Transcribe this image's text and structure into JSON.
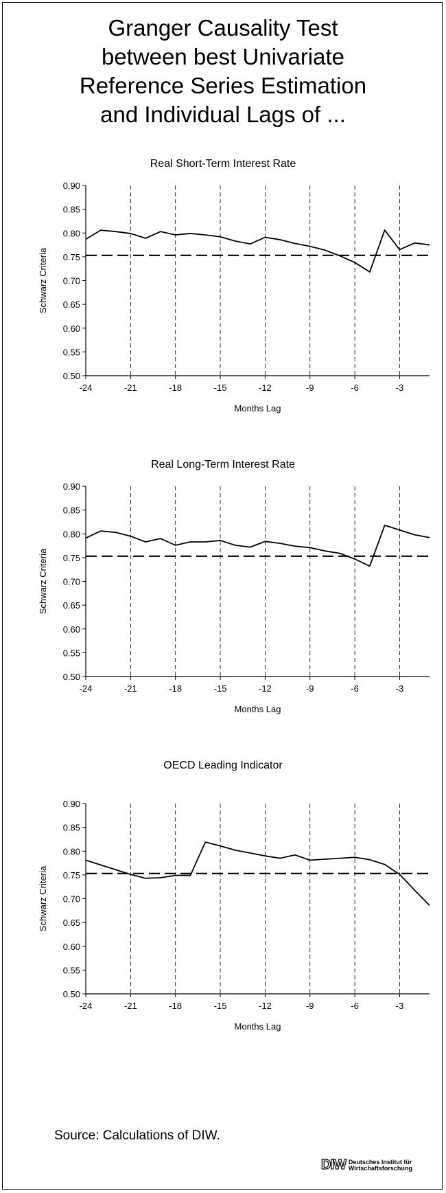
{
  "title_lines": [
    "Granger Causality Test",
    "between best Univariate",
    "Reference Series Estimation",
    "and Individual Lags of ..."
  ],
  "source": "Source: Calculations of DIW.",
  "logo": {
    "mark": "DIW",
    "line1": "Deutsches Institut für",
    "line2": "Wirtschaftsforschung"
  },
  "chart_data": [
    {
      "type": "line",
      "title": "Real Short-Term Interest Rate",
      "xlabel": "Months Lag",
      "ylabel": "Schwarz Criteria",
      "xlim": [
        -24,
        -1
      ],
      "ylim": [
        0.5,
        0.9
      ],
      "x_ticks": [
        -24,
        -21,
        -18,
        -15,
        -12,
        -9,
        -6,
        -3
      ],
      "y_ticks": [
        "0.50",
        "0.55",
        "0.60",
        "0.65",
        "0.70",
        "0.75",
        "0.80",
        "0.85",
        "0.90"
      ],
      "vertical_gridlines_at": [
        -21,
        -18,
        -15,
        -12,
        -9,
        -6,
        -3
      ],
      "reference_line": 0.753,
      "x": [
        -24,
        -23,
        -22,
        -21,
        -20,
        -19,
        -18,
        -17,
        -16,
        -15,
        -14,
        -13,
        -12,
        -11,
        -10,
        -9,
        -8,
        -7,
        -6,
        -5,
        -4,
        -3,
        -2,
        -1
      ],
      "values": [
        0.787,
        0.806,
        0.803,
        0.799,
        0.789,
        0.803,
        0.796,
        0.799,
        0.796,
        0.792,
        0.783,
        0.777,
        0.791,
        0.786,
        0.778,
        0.772,
        0.764,
        0.752,
        0.738,
        0.718,
        0.806,
        0.765,
        0.779,
        0.775
      ]
    },
    {
      "type": "line",
      "title": "Real Long-Term Interest Rate",
      "xlabel": "Months Lag",
      "ylabel": "Schwarz Criteria",
      "xlim": [
        -24,
        -1
      ],
      "ylim": [
        0.5,
        0.9
      ],
      "x_ticks": [
        -24,
        -21,
        -18,
        -15,
        -12,
        -9,
        -6,
        -3
      ],
      "y_ticks": [
        "0.50",
        "0.55",
        "0.60",
        "0.65",
        "0.70",
        "0.75",
        "0.80",
        "0.85",
        "0.90"
      ],
      "vertical_gridlines_at": [
        -21,
        -18,
        -15,
        -12,
        -9,
        -6,
        -3
      ],
      "reference_line": 0.753,
      "x": [
        -24,
        -23,
        -22,
        -21,
        -20,
        -19,
        -18,
        -17,
        -16,
        -15,
        -14,
        -13,
        -12,
        -11,
        -10,
        -9,
        -8,
        -7,
        -6,
        -5,
        -4,
        -3,
        -2,
        -1
      ],
      "values": [
        0.791,
        0.806,
        0.803,
        0.795,
        0.783,
        0.79,
        0.776,
        0.783,
        0.783,
        0.786,
        0.776,
        0.772,
        0.784,
        0.78,
        0.774,
        0.771,
        0.764,
        0.759,
        0.747,
        0.732,
        0.818,
        0.808,
        0.798,
        0.792
      ]
    },
    {
      "type": "line",
      "title": "OECD Leading Indicator",
      "xlabel": "Months Lag",
      "ylabel": "Schwarz Criteria",
      "xlim": [
        -24,
        -1
      ],
      "ylim": [
        0.5,
        0.9
      ],
      "x_ticks": [
        -24,
        -21,
        -18,
        -15,
        -12,
        -9,
        -6,
        -3
      ],
      "y_ticks": [
        "0.50",
        "0.55",
        "0.60",
        "0.65",
        "0.70",
        "0.75",
        "0.80",
        "0.85",
        "0.90"
      ],
      "vertical_gridlines_at": [
        -21,
        -18,
        -15,
        -12,
        -9,
        -6,
        -3
      ],
      "reference_line": 0.753,
      "x": [
        -24,
        -23,
        -22,
        -21,
        -20,
        -19,
        -18,
        -17,
        -16,
        -15,
        -14,
        -13,
        -12,
        -11,
        -10,
        -9,
        -8,
        -7,
        -6,
        -5,
        -4,
        -3,
        -2,
        -1
      ],
      "values": [
        0.781,
        0.771,
        0.761,
        0.751,
        0.743,
        0.744,
        0.749,
        0.749,
        0.819,
        0.811,
        0.802,
        0.796,
        0.79,
        0.785,
        0.792,
        0.781,
        0.783,
        0.785,
        0.787,
        0.782,
        0.772,
        0.751,
        0.718,
        0.686
      ]
    }
  ]
}
